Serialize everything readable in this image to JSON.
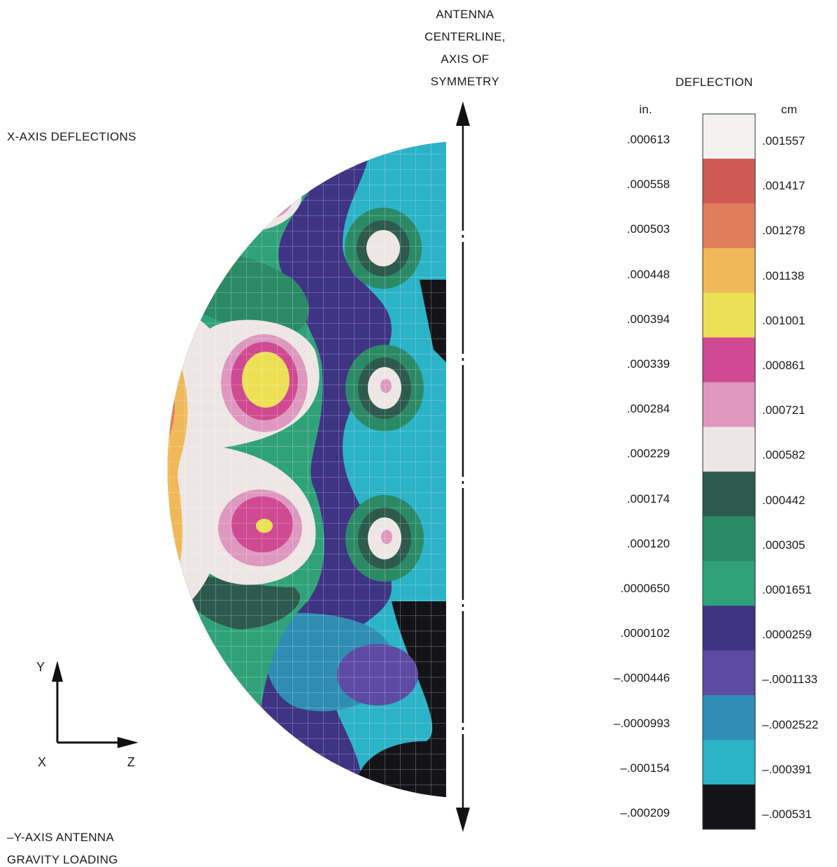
{
  "labels": {
    "x_axis_title": "X-AXIS DEFLECTIONS",
    "loading_line1": "–Y-AXIS ANTENNA",
    "loading_line2": "GRAVITY LOADING",
    "centerline": [
      "ANTENNA",
      "CENTERLINE,",
      "AXIS OF",
      "SYMMETRY"
    ],
    "axes": {
      "y": "Y",
      "x": "X",
      "z": "Z"
    }
  },
  "legend": {
    "title": "DEFLECTION",
    "unit_in": "in.",
    "unit_cm": "cm",
    "bands": [
      {
        "in": ".000613",
        "cm": ".001557",
        "color": "#f4f2ee"
      },
      {
        "in": ".000558",
        "cm": ".001417",
        "color": "#cf5a55"
      },
      {
        "in": ".000503",
        "cm": ".001278",
        "color": "#e07e5c"
      },
      {
        "in": ".000448",
        "cm": ".001138",
        "color": "#efb95a"
      },
      {
        "in": ".000394",
        "cm": ".001001",
        "color": "#ece054"
      },
      {
        "in": ".000339",
        "cm": ".000861",
        "color": "#cf4a92"
      },
      {
        "in": ".000284",
        "cm": ".000721",
        "color": "#de98c0"
      },
      {
        "in": ".000229",
        "cm": ".000582",
        "color": "#ede6e4"
      },
      {
        "in": ".000174",
        "cm": ".000442",
        "color": "#2e5a4e"
      },
      {
        "in": ".000120",
        "cm": ".000305",
        "color": "#2b8a66"
      },
      {
        "in": ".0000650",
        "cm": ".0001651",
        "color": "#30a27a"
      },
      {
        "in": ".0000102",
        "cm": ".0000259",
        "color": "#3f3384"
      },
      {
        "in": "–.0000446",
        "cm": "–.0001133",
        "color": "#5d4aa3"
      },
      {
        "in": "–.0000993",
        "cm": "–.0002522",
        "color": "#2f8db3"
      },
      {
        "in": "–.000154",
        "cm": "–.000391",
        "color": "#2bb3c7"
      },
      {
        "in": "–.000209",
        "cm": "–.000531",
        "color": "#141418"
      }
    ]
  }
}
